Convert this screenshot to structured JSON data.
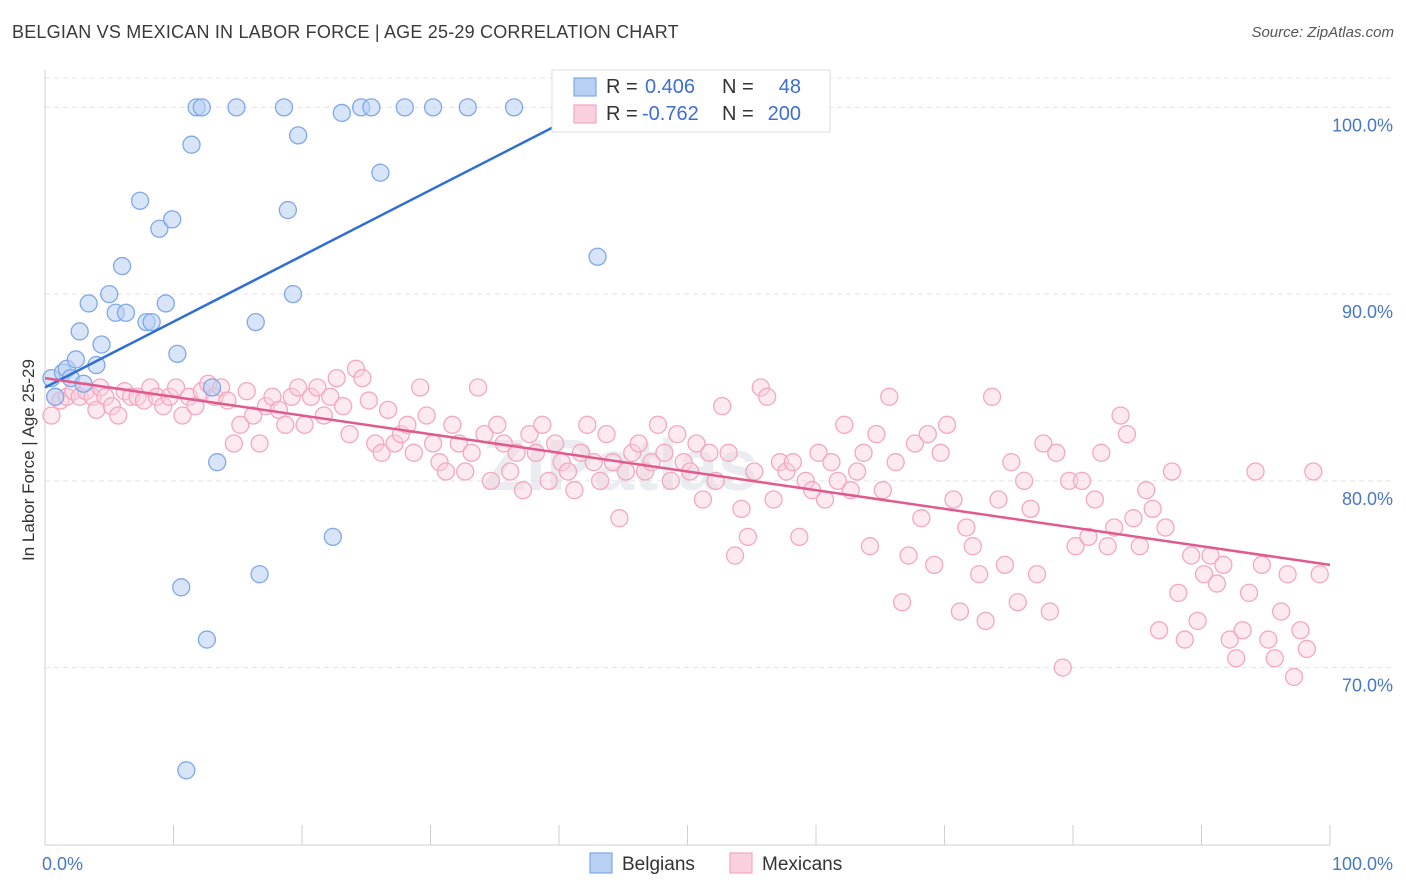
{
  "title": "BELGIAN VS MEXICAN IN LABOR FORCE | AGE 25-29 CORRELATION CHART",
  "source": "Source: ZipAtlas.com",
  "watermark": "ZIPatlas",
  "chart_data": {
    "type": "scatter",
    "xlabel": "",
    "ylabel": "In Labor Force | Age 25-29",
    "xlim": [
      0,
      100
    ],
    "ylim": [
      60.5,
      102
    ],
    "x_tick_labels": [
      "0.0%",
      "100.0%"
    ],
    "y_ticks": [
      70,
      80,
      90,
      100
    ],
    "y_tick_labels": [
      "70.0%",
      "80.0%",
      "90.0%",
      "100.0%"
    ],
    "grid": true,
    "legend": {
      "placement": "top-center",
      "rows": [
        {
          "r_label": "R =",
          "r_value": "0.406",
          "n_label": "N =",
          "n_value": "48"
        },
        {
          "r_label": "R =",
          "r_value": "-0.762",
          "n_label": "N =",
          "n_value": "200"
        }
      ]
    },
    "series": [
      {
        "name": "Belgians",
        "color": "#7fa8e8",
        "line_color": "#2f6fd0",
        "trend": {
          "x": [
            0,
            42
          ],
          "y": [
            85.0,
            99.8
          ]
        },
        "points": [
          [
            0.5,
            85.5
          ],
          [
            0.8,
            84.5
          ],
          [
            1.4,
            85.8
          ],
          [
            1.7,
            86.0
          ],
          [
            2.0,
            85.5
          ],
          [
            2.4,
            86.5
          ],
          [
            2.7,
            88.0
          ],
          [
            3.0,
            85.2
          ],
          [
            3.4,
            89.5
          ],
          [
            4.0,
            86.2
          ],
          [
            4.4,
            87.3
          ],
          [
            5.0,
            90.0
          ],
          [
            5.5,
            89.0
          ],
          [
            6.0,
            91.5
          ],
          [
            6.3,
            89.0
          ],
          [
            7.4,
            95.0
          ],
          [
            7.9,
            88.5
          ],
          [
            8.3,
            88.5
          ],
          [
            8.9,
            93.5
          ],
          [
            9.4,
            89.5
          ],
          [
            9.9,
            94.0
          ],
          [
            10.3,
            86.8
          ],
          [
            10.6,
            74.3
          ],
          [
            11.0,
            64.5
          ],
          [
            11.4,
            98.0
          ],
          [
            11.8,
            100.0
          ],
          [
            12.2,
            100.0
          ],
          [
            12.6,
            71.5
          ],
          [
            13.0,
            85.0
          ],
          [
            13.4,
            81.0
          ],
          [
            14.9,
            100.0
          ],
          [
            16.4,
            88.5
          ],
          [
            16.7,
            75.0
          ],
          [
            18.6,
            100.0
          ],
          [
            18.9,
            94.5
          ],
          [
            19.3,
            90.0
          ],
          [
            19.7,
            98.5
          ],
          [
            22.4,
            77.0
          ],
          [
            23.1,
            99.7
          ],
          [
            24.6,
            100.0
          ],
          [
            25.4,
            100.0
          ],
          [
            26.1,
            96.5
          ],
          [
            28.0,
            100.0
          ],
          [
            30.2,
            100.0
          ],
          [
            32.9,
            100.0
          ],
          [
            36.5,
            100.0
          ],
          [
            42.4,
            100.0
          ],
          [
            43.0,
            92.0
          ]
        ]
      },
      {
        "name": "Mexicans",
        "color": "#f4a7c0",
        "line_color": "#e05a8d",
        "trend": {
          "x": [
            0,
            100
          ],
          "y": [
            85.5,
            75.5
          ]
        },
        "points": [
          [
            0.5,
            83.5
          ],
          [
            0.8,
            84.5
          ],
          [
            1.2,
            84.3
          ],
          [
            1.7,
            84.5
          ],
          [
            2.2,
            84.8
          ],
          [
            2.7,
            84.5
          ],
          [
            3.2,
            84.8
          ],
          [
            3.7,
            84.5
          ],
          [
            4.0,
            83.8
          ],
          [
            4.3,
            85.0
          ],
          [
            4.7,
            84.5
          ],
          [
            5.2,
            84.0
          ],
          [
            5.7,
            83.5
          ],
          [
            6.2,
            84.8
          ],
          [
            6.7,
            84.5
          ],
          [
            7.2,
            84.5
          ],
          [
            7.7,
            84.3
          ],
          [
            8.2,
            85.0
          ],
          [
            8.7,
            84.5
          ],
          [
            9.2,
            84.0
          ],
          [
            9.7,
            84.5
          ],
          [
            10.2,
            85.0
          ],
          [
            10.7,
            83.5
          ],
          [
            11.2,
            84.5
          ],
          [
            11.7,
            84.0
          ],
          [
            12.2,
            84.8
          ],
          [
            12.7,
            85.2
          ],
          [
            13.2,
            84.5
          ],
          [
            13.7,
            85.0
          ],
          [
            14.2,
            84.3
          ],
          [
            14.7,
            82.0
          ],
          [
            15.2,
            83.0
          ],
          [
            15.7,
            84.8
          ],
          [
            16.2,
            83.5
          ],
          [
            16.7,
            82.0
          ],
          [
            17.2,
            84.0
          ],
          [
            17.7,
            84.5
          ],
          [
            18.2,
            83.8
          ],
          [
            18.7,
            83.0
          ],
          [
            19.2,
            84.5
          ],
          [
            19.7,
            85.0
          ],
          [
            20.2,
            83.0
          ],
          [
            20.7,
            84.5
          ],
          [
            21.2,
            85.0
          ],
          [
            21.7,
            83.5
          ],
          [
            22.2,
            84.5
          ],
          [
            22.7,
            85.5
          ],
          [
            23.2,
            84.0
          ],
          [
            23.7,
            82.5
          ],
          [
            24.2,
            86.0
          ],
          [
            24.7,
            85.5
          ],
          [
            25.2,
            84.3
          ],
          [
            25.7,
            82.0
          ],
          [
            26.2,
            81.5
          ],
          [
            26.7,
            83.8
          ],
          [
            27.2,
            82.0
          ],
          [
            27.7,
            82.5
          ],
          [
            28.2,
            83.0
          ],
          [
            28.7,
            81.5
          ],
          [
            29.2,
            85.0
          ],
          [
            29.7,
            83.5
          ],
          [
            30.2,
            82.0
          ],
          [
            30.7,
            81.0
          ],
          [
            31.2,
            80.5
          ],
          [
            31.7,
            83.0
          ],
          [
            32.2,
            82.0
          ],
          [
            32.7,
            80.5
          ],
          [
            33.2,
            81.5
          ],
          [
            33.7,
            85.0
          ],
          [
            34.2,
            82.5
          ],
          [
            34.7,
            80.0
          ],
          [
            35.2,
            83.0
          ],
          [
            35.7,
            82.0
          ],
          [
            36.2,
            80.5
          ],
          [
            36.7,
            81.5
          ],
          [
            37.2,
            79.5
          ],
          [
            37.7,
            82.5
          ],
          [
            38.2,
            81.5
          ],
          [
            38.7,
            83.0
          ],
          [
            39.2,
            80.0
          ],
          [
            39.7,
            82.0
          ],
          [
            40.2,
            81.0
          ],
          [
            40.7,
            80.5
          ],
          [
            41.2,
            79.5
          ],
          [
            41.7,
            81.5
          ],
          [
            42.2,
            83.0
          ],
          [
            42.7,
            81.0
          ],
          [
            43.2,
            80.0
          ],
          [
            43.7,
            82.5
          ],
          [
            44.2,
            81.0
          ],
          [
            44.7,
            78.0
          ],
          [
            45.2,
            80.5
          ],
          [
            45.7,
            81.5
          ],
          [
            46.2,
            82.0
          ],
          [
            46.7,
            80.5
          ],
          [
            47.2,
            81.0
          ],
          [
            47.7,
            83.0
          ],
          [
            48.2,
            81.5
          ],
          [
            48.7,
            80.0
          ],
          [
            49.2,
            82.5
          ],
          [
            49.7,
            81.0
          ],
          [
            50.2,
            80.5
          ],
          [
            50.7,
            82.0
          ],
          [
            51.2,
            79.0
          ],
          [
            51.7,
            81.5
          ],
          [
            52.2,
            80.0
          ],
          [
            52.7,
            84.0
          ],
          [
            53.2,
            81.5
          ],
          [
            53.7,
            76.0
          ],
          [
            54.2,
            78.5
          ],
          [
            54.7,
            77.0
          ],
          [
            55.2,
            80.5
          ],
          [
            55.7,
            85.0
          ],
          [
            56.2,
            84.5
          ],
          [
            56.7,
            79.0
          ],
          [
            57.2,
            81.0
          ],
          [
            57.7,
            80.5
          ],
          [
            58.2,
            81.0
          ],
          [
            58.7,
            77.0
          ],
          [
            59.2,
            80.0
          ],
          [
            59.7,
            79.5
          ],
          [
            60.2,
            81.5
          ],
          [
            60.7,
            79.0
          ],
          [
            61.2,
            81.0
          ],
          [
            61.7,
            80.0
          ],
          [
            62.2,
            83.0
          ],
          [
            62.7,
            79.5
          ],
          [
            63.2,
            80.5
          ],
          [
            63.7,
            81.5
          ],
          [
            64.2,
            76.5
          ],
          [
            64.7,
            82.5
          ],
          [
            65.2,
            79.5
          ],
          [
            65.7,
            84.5
          ],
          [
            66.2,
            81.0
          ],
          [
            66.7,
            73.5
          ],
          [
            67.2,
            76.0
          ],
          [
            67.7,
            82.0
          ],
          [
            68.2,
            78.0
          ],
          [
            68.7,
            82.5
          ],
          [
            69.2,
            75.5
          ],
          [
            69.7,
            81.5
          ],
          [
            70.2,
            83.0
          ],
          [
            70.7,
            79.0
          ],
          [
            71.2,
            73.0
          ],
          [
            71.7,
            77.5
          ],
          [
            72.2,
            76.5
          ],
          [
            72.7,
            75.0
          ],
          [
            73.2,
            72.5
          ],
          [
            73.7,
            84.5
          ],
          [
            74.2,
            79.0
          ],
          [
            74.7,
            75.5
          ],
          [
            75.2,
            81.0
          ],
          [
            75.7,
            73.5
          ],
          [
            76.2,
            80.0
          ],
          [
            76.7,
            78.5
          ],
          [
            77.2,
            75.0
          ],
          [
            77.7,
            82.0
          ],
          [
            78.2,
            73.0
          ],
          [
            78.7,
            81.5
          ],
          [
            79.2,
            70.0
          ],
          [
            79.7,
            80.0
          ],
          [
            80.2,
            76.5
          ],
          [
            80.7,
            80.0
          ],
          [
            81.2,
            77.0
          ],
          [
            81.7,
            79.0
          ],
          [
            82.2,
            81.5
          ],
          [
            82.7,
            76.5
          ],
          [
            83.2,
            77.5
          ],
          [
            83.7,
            83.5
          ],
          [
            84.2,
            82.5
          ],
          [
            84.7,
            78.0
          ],
          [
            85.2,
            76.5
          ],
          [
            85.7,
            79.5
          ],
          [
            86.2,
            78.5
          ],
          [
            86.7,
            72.0
          ],
          [
            87.2,
            77.5
          ],
          [
            87.7,
            80.5
          ],
          [
            88.2,
            74.0
          ],
          [
            88.7,
            71.5
          ],
          [
            89.2,
            76.0
          ],
          [
            89.7,
            72.5
          ],
          [
            90.2,
            75.0
          ],
          [
            90.7,
            76.0
          ],
          [
            91.2,
            74.5
          ],
          [
            91.7,
            75.5
          ],
          [
            92.2,
            71.5
          ],
          [
            92.7,
            70.5
          ],
          [
            93.2,
            72.0
          ],
          [
            93.7,
            74.0
          ],
          [
            94.2,
            80.5
          ],
          [
            94.7,
            75.5
          ],
          [
            95.2,
            71.5
          ],
          [
            95.7,
            70.5
          ],
          [
            96.2,
            73.0
          ],
          [
            96.7,
            75.0
          ],
          [
            97.2,
            69.5
          ],
          [
            97.7,
            72.0
          ],
          [
            98.2,
            71.0
          ],
          [
            98.7,
            80.5
          ],
          [
            99.2,
            75.0
          ]
        ]
      }
    ]
  }
}
